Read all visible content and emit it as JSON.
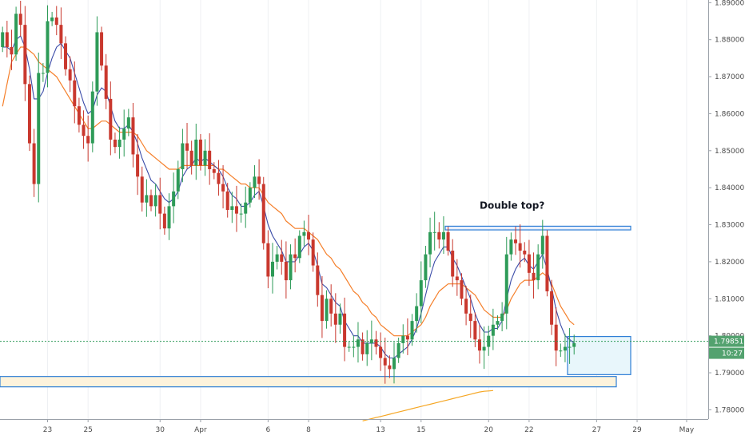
{
  "chart_data": {
    "type": "candlestick",
    "title": "",
    "xlabel": "",
    "ylabel": "",
    "ylim": [
      1.7775,
      1.8905
    ],
    "y_ticks": [
      "1.78000",
      "1.79000",
      "1.80000",
      "1.81000",
      "1.82000",
      "1.83000",
      "1.84000",
      "1.85000",
      "1.86000",
      "1.87000",
      "1.88000",
      "1.89000"
    ],
    "x_ticks": [
      {
        "label": "23",
        "bar": 10
      },
      {
        "label": "25",
        "bar": 19
      },
      {
        "label": "30",
        "bar": 35
      },
      {
        "label": "Apr",
        "bar": 44
      },
      {
        "label": "6",
        "bar": 59
      },
      {
        "label": "8",
        "bar": 68
      },
      {
        "label": "13",
        "bar": 84
      },
      {
        "label": "15",
        "bar": 93
      },
      {
        "label": "20",
        "bar": 108
      },
      {
        "label": "22",
        "bar": 117
      },
      {
        "label": "27",
        "bar": 132
      },
      {
        "label": "29",
        "bar": 141
      },
      {
        "label": "May",
        "bar": 152
      }
    ],
    "last_price": 1.79851,
    "countdown": "10:27",
    "annotation": "Double top?",
    "ohlc_close": [
      1.882,
      1.878,
      1.876,
      1.887,
      1.884,
      1.868,
      1.852,
      1.841,
      1.871,
      1.871,
      1.885,
      1.886,
      1.884,
      1.879,
      1.872,
      1.869,
      1.862,
      1.857,
      1.854,
      1.852,
      1.866,
      1.882,
      1.873,
      1.864,
      1.853,
      1.851,
      1.853,
      1.856,
      1.859,
      1.849,
      1.843,
      1.836,
      1.838,
      1.835,
      1.838,
      1.833,
      1.829,
      1.835,
      1.839,
      1.845,
      1.852,
      1.85,
      1.846,
      1.853,
      1.846,
      1.85,
      1.845,
      1.844,
      1.841,
      1.839,
      1.834,
      1.835,
      1.833,
      1.833,
      1.836,
      1.84,
      1.843,
      1.841,
      1.825,
      1.816,
      1.82,
      1.822,
      1.82,
      1.815,
      1.822,
      1.821,
      1.827,
      1.828,
      1.826,
      1.819,
      1.811,
      1.804,
      1.81,
      1.806,
      1.803,
      1.806,
      1.797,
      1.797,
      1.797,
      1.799,
      1.795,
      1.798,
      1.799,
      1.797,
      1.794,
      1.792,
      1.791,
      1.794,
      1.798,
      1.8,
      1.799,
      1.804,
      1.808,
      1.815,
      1.822,
      1.828,
      1.828,
      1.826,
      1.828,
      1.823,
      1.816,
      1.815,
      1.81,
      1.806,
      1.804,
      1.799,
      1.796,
      1.797,
      1.8,
      1.803,
      1.804,
      1.806,
      1.822,
      1.826,
      1.825,
      1.823,
      1.822,
      1.817,
      1.815,
      1.822,
      1.827,
      1.812,
      1.803,
      1.796,
      1.796,
      1.797,
      1.797,
      1.798
    ],
    "series": [
      {
        "name": "",
        "color": "#f57f2a",
        "values": [
          1.862,
          1.868,
          1.874,
          1.876,
          1.878,
          1.878,
          1.877,
          1.876,
          1.874,
          1.873,
          1.872,
          1.871,
          1.87,
          1.868,
          1.866,
          1.864,
          1.862,
          1.86,
          1.858,
          1.856,
          1.856,
          1.857,
          1.858,
          1.858,
          1.857,
          1.856,
          1.855,
          1.855,
          1.855,
          1.855,
          1.854,
          1.852,
          1.85,
          1.849,
          1.848,
          1.847,
          1.846,
          1.845,
          1.845,
          1.845,
          1.846,
          1.846,
          1.846,
          1.846,
          1.846,
          1.846,
          1.846,
          1.846,
          1.845,
          1.845,
          1.844,
          1.843,
          1.842,
          1.841,
          1.841,
          1.84,
          1.84,
          1.84,
          1.838,
          1.836,
          1.835,
          1.834,
          1.833,
          1.831,
          1.83,
          1.829,
          1.829,
          1.829,
          1.828,
          1.827,
          1.826,
          1.824,
          1.822,
          1.821,
          1.819,
          1.818,
          1.816,
          1.814,
          1.812,
          1.811,
          1.809,
          1.808,
          1.806,
          1.805,
          1.803,
          1.802,
          1.801,
          1.8,
          1.8,
          1.8,
          1.8,
          1.801,
          1.802,
          1.803,
          1.805,
          1.808,
          1.81,
          1.812,
          1.813,
          1.814,
          1.814,
          1.814,
          1.814,
          1.813,
          1.812,
          1.811,
          1.809,
          1.807,
          1.806,
          1.805,
          1.805,
          1.805,
          1.807,
          1.81,
          1.812,
          1.814,
          1.815,
          1.815,
          1.815,
          1.816,
          1.817,
          1.816,
          1.814,
          1.811,
          1.808,
          1.806,
          1.804,
          1.803
        ]
      },
      {
        "name": "",
        "color": "#3a4ba8",
        "values": [
          1.878,
          1.878,
          1.877,
          1.88,
          1.881,
          1.878,
          1.872,
          1.864,
          1.864,
          1.866,
          1.871,
          1.875,
          1.878,
          1.879,
          1.877,
          1.875,
          1.871,
          1.867,
          1.863,
          1.86,
          1.861,
          1.865,
          1.867,
          1.866,
          1.862,
          1.858,
          1.856,
          1.856,
          1.857,
          1.855,
          1.852,
          1.848,
          1.845,
          1.842,
          1.841,
          1.839,
          1.837,
          1.836,
          1.837,
          1.839,
          1.843,
          1.845,
          1.846,
          1.848,
          1.847,
          1.848,
          1.847,
          1.846,
          1.845,
          1.843,
          1.84,
          1.838,
          1.837,
          1.835,
          1.835,
          1.836,
          1.838,
          1.839,
          1.835,
          1.83,
          1.827,
          1.825,
          1.823,
          1.82,
          1.82,
          1.82,
          1.822,
          1.824,
          1.825,
          1.823,
          1.819,
          1.814,
          1.813,
          1.811,
          1.809,
          1.808,
          1.804,
          1.802,
          1.8,
          1.8,
          1.798,
          1.798,
          1.798,
          1.798,
          1.797,
          1.795,
          1.794,
          1.794,
          1.795,
          1.796,
          1.797,
          1.799,
          1.802,
          1.806,
          1.811,
          1.816,
          1.82,
          1.822,
          1.824,
          1.824,
          1.821,
          1.819,
          1.816,
          1.813,
          1.81,
          1.806,
          1.803,
          1.801,
          1.801,
          1.802,
          1.802,
          1.804,
          1.81,
          1.815,
          1.818,
          1.82,
          1.821,
          1.819,
          1.818,
          1.82,
          1.822,
          1.818,
          1.813,
          1.807,
          1.803,
          1.8,
          1.799,
          1.798
        ]
      },
      {
        "name": "",
        "color": "#f5a623",
        "values": [
          1.777,
          1.7773,
          1.7776,
          1.7779,
          1.7782,
          1.7785,
          1.7788,
          1.7791,
          1.7794,
          1.7797,
          1.78,
          1.7803,
          1.7806,
          1.7809,
          1.7812,
          1.7815,
          1.7818,
          1.7821,
          1.7824,
          1.7827,
          1.783,
          1.7833,
          1.7836,
          1.7839,
          1.7842,
          1.7845,
          1.7848,
          1.785,
          1.7851,
          1.7852
        ]
      }
    ]
  }
}
